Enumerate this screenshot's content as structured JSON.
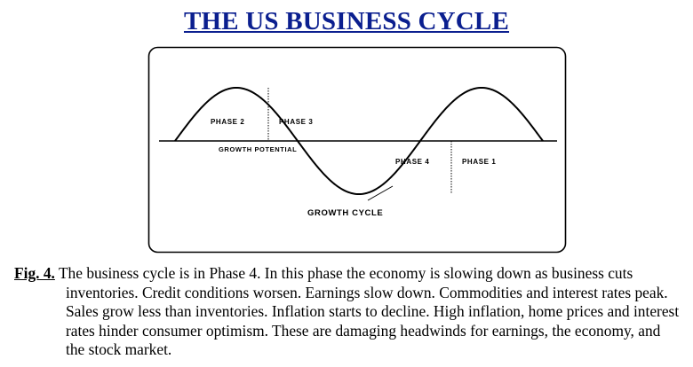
{
  "title": "THE US BUSINESS CYCLE",
  "diagram": {
    "phase_labels": [
      "PHASE 2",
      "PHASE 3",
      "PHASE 4",
      "PHASE 1"
    ],
    "baseline_label": "GROWTH POTENTIAL",
    "curve_label": "GROWTH CYCLE"
  },
  "caption": {
    "label": "Fig. 4.",
    "text": "The business cycle is in Phase 4. In this phase the economy is slowing down as business cuts inventories.  Credit conditions worsen. Earnings slow down. Commodities and interest rates peak. Sales grow less than inventories. Inflation starts to decline. High inflation, home prices and interest rates hinder consumer optimism. These are damaging headwinds for earnings, the economy, and the stock market."
  }
}
